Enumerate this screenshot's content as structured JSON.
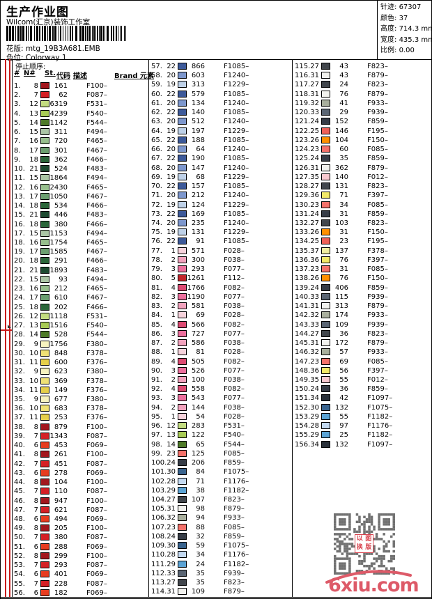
{
  "header": {
    "title": "生产作业图",
    "studio": "Wilcom(汇京)装饰工作室",
    "pattern_label": "花版:",
    "pattern_value": "mtg_19B3A681.EMB",
    "colorway_label": "色位:",
    "colorway_value": "Colorway 1",
    "info": [
      {
        "label": "针迹:",
        "value": "67307"
      },
      {
        "label": "颜色:",
        "value": "37"
      },
      {
        "label": "高度:",
        "value": "714.3 mm"
      },
      {
        "label": "宽度:",
        "value": "435.3 mm"
      },
      {
        "label": "比例:",
        "value": "0.00"
      }
    ]
  },
  "table": {
    "stop_order_label": "停止顺序:",
    "headers": [
      "#",
      "N#",
      "St.",
      "代码",
      "描述",
      "Brand 元素"
    ],
    "needle_colors": {
      "1": "#f6d2db",
      "2": "#f2a2bd",
      "3": "#ec6f9d",
      "4": "#dc4a72",
      "5": "#c2252b",
      "6": "#e73c1f",
      "7": "#d52025",
      "8": "#a3171d",
      "9": "#f6f2bf",
      "10": "#efe175",
      "11": "#e6cf4a",
      "12": "#c3dc80",
      "13": "#a8cb55",
      "14": "#4e7a28",
      "15": "#abc5a5",
      "16": "#97bf8d",
      "17": "#6c9f70",
      "18": "#2b663a",
      "19": "#bed1e8",
      "20": "#7d97cd",
      "21": "#1e4a31",
      "22": "#3d5a9a",
      "23": "#f4716a",
      "24": "#363c46",
      "25": "#ee6057",
      "26": "#ff9000",
      "27": "#41464c",
      "28": "#c3d9f1",
      "29": "#5ba3d4",
      "30": "#39648f",
      "31": "#f2f2ee",
      "32": "#a9af9d",
      "33": "#5a6573",
      "34": "#293039",
      "35": "#f9c9d0",
      "36": "#f2e968",
      "37": "#f0eda0"
    },
    "rows": [
      [
        "1.",
        8,
        "161",
        "F100–"
      ],
      [
        "2.",
        7,
        "62",
        "F087–"
      ],
      [
        "3.",
        12,
        "6319",
        "F531–"
      ],
      [
        "4.",
        13,
        "4239",
        "F540–"
      ],
      [
        "5.",
        14,
        "1142",
        "F544–"
      ],
      [
        "6.",
        15,
        "311",
        "F494–"
      ],
      [
        "7.",
        16,
        "720",
        "F465–"
      ],
      [
        "8.",
        17,
        "301",
        "F467–"
      ],
      [
        "9.",
        18,
        "362",
        "F466–"
      ],
      [
        "10.",
        21,
        "524",
        "F483–"
      ],
      [
        "11.",
        15,
        "1864",
        "F494–"
      ],
      [
        "12.",
        16,
        "2430",
        "F465–"
      ],
      [
        "13.",
        17,
        "1050",
        "F467–"
      ],
      [
        "14.",
        18,
        "534",
        "F466–"
      ],
      [
        "15.",
        21,
        "446",
        "F483–"
      ],
      [
        "16.",
        18,
        "380",
        "F466–"
      ],
      [
        "17.",
        15,
        "1153",
        "F494–"
      ],
      [
        "18.",
        16,
        "1754",
        "F465–"
      ],
      [
        "19.",
        17,
        "1585",
        "F467–"
      ],
      [
        "20.",
        18,
        "291",
        "F466–"
      ],
      [
        "21.",
        21,
        "1893",
        "F483–"
      ],
      [
        "22.",
        15,
        "93",
        "F494–"
      ],
      [
        "23.",
        16,
        "212",
        "F465–"
      ],
      [
        "24.",
        17,
        "610",
        "F467–"
      ],
      [
        "25.",
        18,
        "202",
        "F466–"
      ],
      [
        "26.",
        12,
        "1118",
        "F531–"
      ],
      [
        "27.",
        13,
        "1516",
        "F540–"
      ],
      [
        "28.",
        14,
        "528",
        "F544–"
      ],
      [
        "29.",
        9,
        "1756",
        "F380–"
      ],
      [
        "30.",
        10,
        "848",
        "F378–"
      ],
      [
        "31.",
        11,
        "600",
        "F376–"
      ],
      [
        "32.",
        9,
        "623",
        "F380–"
      ],
      [
        "33.",
        10,
        "369",
        "F378–"
      ],
      [
        "34.",
        11,
        "149",
        "F376–"
      ],
      [
        "35.",
        9,
        "677",
        "F380–"
      ],
      [
        "36.",
        10,
        "683",
        "F378–"
      ],
      [
        "37.",
        11,
        "253",
        "F376–"
      ],
      [
        "38.",
        8,
        "879",
        "F100–"
      ],
      [
        "39.",
        7,
        "1343",
        "F087–"
      ],
      [
        "40.",
        6,
        "453",
        "F069–"
      ],
      [
        "41.",
        8,
        "261",
        "F100–"
      ],
      [
        "42.",
        7,
        "451",
        "F087–"
      ],
      [
        "43.",
        6,
        "278",
        "F069–"
      ],
      [
        "44.",
        8,
        "104",
        "F100–"
      ],
      [
        "45.",
        7,
        "110",
        "F087–"
      ],
      [
        "46.",
        8,
        "947",
        "F100–"
      ],
      [
        "47.",
        7,
        "621",
        "F087–"
      ],
      [
        "48.",
        6,
        "494",
        "F069–"
      ],
      [
        "49.",
        8,
        "205",
        "F100–"
      ],
      [
        "50.",
        7,
        "380",
        "F087–"
      ],
      [
        "51.",
        6,
        "288",
        "F069–"
      ],
      [
        "52.",
        8,
        "299",
        "F100–"
      ],
      [
        "53.",
        7,
        "293",
        "F087–"
      ],
      [
        "54.",
        6,
        "401",
        "F069–"
      ],
      [
        "55.",
        7,
        "228",
        "F087–"
      ],
      [
        "56.",
        6,
        "182",
        "F069–"
      ],
      [
        "57.",
        22,
        "866",
        "F1085–"
      ],
      [
        "58.",
        20,
        "603",
        "F1240–"
      ],
      [
        "59.",
        19,
        "313",
        "F1229–"
      ],
      [
        "60.",
        22,
        "579",
        "F1085–"
      ],
      [
        "61.",
        20,
        "134",
        "F1240–"
      ],
      [
        "62.",
        22,
        "140",
        "F1085–"
      ],
      [
        "63.",
        20,
        "512",
        "F1240–"
      ],
      [
        "64.",
        19,
        "197",
        "F1229–"
      ],
      [
        "65.",
        22,
        "188",
        "F1085–"
      ],
      [
        "66.",
        20,
        "64",
        "F1240–"
      ],
      [
        "67.",
        22,
        "190",
        "F1085–"
      ],
      [
        "68.",
        20,
        "147",
        "F1240–"
      ],
      [
        "69.",
        19,
        "68",
        "F1229–"
      ],
      [
        "70.",
        22,
        "157",
        "F1085–"
      ],
      [
        "71.",
        20,
        "212",
        "F1240–"
      ],
      [
        "72.",
        19,
        "124",
        "F1229–"
      ],
      [
        "73.",
        22,
        "169",
        "F1085–"
      ],
      [
        "74.",
        20,
        "235",
        "F1240–"
      ],
      [
        "75.",
        19,
        "131",
        "F1229–"
      ],
      [
        "76.",
        22,
        "91",
        "F1085–"
      ],
      [
        "77.",
        1,
        "571",
        "F028–"
      ],
      [
        "78.",
        2,
        "300",
        "F038–"
      ],
      [
        "79.",
        3,
        "293",
        "F077–"
      ],
      [
        "80.",
        5,
        "1261",
        "F112–"
      ],
      [
        "81.",
        4,
        "1766",
        "F082–"
      ],
      [
        "82.",
        3,
        "1190",
        "F077–"
      ],
      [
        "83.",
        2,
        "581",
        "F038–"
      ],
      [
        "84.",
        1,
        "69",
        "F028–"
      ],
      [
        "85.",
        4,
        "566",
        "F082–"
      ],
      [
        "86.",
        3,
        "727",
        "F077–"
      ],
      [
        "87.",
        2,
        "586",
        "F038–"
      ],
      [
        "88.",
        1,
        "81",
        "F028–"
      ],
      [
        "89.",
        4,
        "505",
        "F082–"
      ],
      [
        "90.",
        3,
        "526",
        "F077–"
      ],
      [
        "91.",
        2,
        "100",
        "F038–"
      ],
      [
        "92.",
        4,
        "558",
        "F082–"
      ],
      [
        "93.",
        3,
        "543",
        "F077–"
      ],
      [
        "94.",
        2,
        "144",
        "F038–"
      ],
      [
        "95.",
        1,
        "54",
        "F028–"
      ],
      [
        "96.",
        12,
        "283",
        "F531–"
      ],
      [
        "97.",
        13,
        "122",
        "F540–"
      ],
      [
        "98.",
        14,
        "65",
        "F544–"
      ],
      [
        "99.",
        23,
        "125",
        "F085–"
      ],
      [
        "100.",
        24,
        "206",
        "F859–"
      ],
      [
        "101.",
        30,
        "84",
        "F1075–"
      ],
      [
        "102.",
        28,
        "71",
        "F1176–"
      ],
      [
        "103.",
        29,
        "38",
        "F1182–"
      ],
      [
        "104.",
        27,
        "107",
        "F823–"
      ],
      [
        "105.",
        31,
        "98",
        "F879–"
      ],
      [
        "106.",
        32,
        "94",
        "F933–"
      ],
      [
        "107.",
        23,
        "88",
        "F085–"
      ],
      [
        "108.",
        24,
        "32",
        "F859–"
      ],
      [
        "109.",
        30,
        "59",
        "F1075–"
      ],
      [
        "110.",
        28,
        "34",
        "F1176–"
      ],
      [
        "111.",
        29,
        "24",
        "F1182–"
      ],
      [
        "112.",
        33,
        "35",
        "F939–"
      ],
      [
        "113.",
        27,
        "35",
        "F823–"
      ],
      [
        "114.",
        31,
        "109",
        "F879–"
      ],
      [
        "115.",
        27,
        "43",
        "F823–"
      ],
      [
        "116.",
        31,
        "43",
        "F879–"
      ],
      [
        "117.",
        27,
        "24",
        "F823–"
      ],
      [
        "118.",
        31,
        "76",
        "F879–"
      ],
      [
        "119.",
        32,
        "41",
        "F933–"
      ],
      [
        "120.",
        33,
        "29",
        "F939–"
      ],
      [
        "121.",
        24,
        "152",
        "F859–"
      ],
      [
        "122.",
        25,
        "146",
        "F195–"
      ],
      [
        "123.",
        26,
        "104",
        "F150–"
      ],
      [
        "124.",
        23,
        "60",
        "F085–"
      ],
      [
        "125.",
        24,
        "35",
        "F859–"
      ],
      [
        "126.",
        31,
        "362",
        "F879–"
      ],
      [
        "127.",
        35,
        "140",
        "F012–"
      ],
      [
        "128.",
        27,
        "131",
        "F823–"
      ],
      [
        "129.",
        36,
        "71",
        "F397–"
      ],
      [
        "130.",
        23,
        "34",
        "F085–"
      ],
      [
        "131.",
        24,
        "31",
        "F859–"
      ],
      [
        "132.",
        27,
        "103",
        "F823–"
      ],
      [
        "133.",
        26,
        "31",
        "F150–"
      ],
      [
        "134.",
        25,
        "23",
        "F195–"
      ],
      [
        "135.",
        37,
        "137",
        "F378–"
      ],
      [
        "136.",
        36,
        "76",
        "F397–"
      ],
      [
        "137.",
        23,
        "31",
        "F085–"
      ],
      [
        "138.",
        26,
        "76",
        "F150–"
      ],
      [
        "139.",
        24,
        "406",
        "F859–"
      ],
      [
        "140.",
        33,
        "115",
        "F939–"
      ],
      [
        "141.",
        31,
        "313",
        "F879–"
      ],
      [
        "142.",
        32,
        "174",
        "F933–"
      ],
      [
        "143.",
        33,
        "109",
        "F939–"
      ],
      [
        "144.",
        27,
        "36",
        "F823–"
      ],
      [
        "145.",
        31,
        "172",
        "F879–"
      ],
      [
        "146.",
        32,
        "57",
        "F933–"
      ],
      [
        "147.",
        23,
        "69",
        "F085–"
      ],
      [
        "148.",
        36,
        "56",
        "F397–"
      ],
      [
        "149.",
        35,
        "55",
        "F012–"
      ],
      [
        "150.",
        24,
        "36",
        "F859–"
      ],
      [
        "151.",
        34,
        "42",
        "F1097–"
      ],
      [
        "152.",
        30,
        "132",
        "F1075–"
      ],
      [
        "153.",
        29,
        "55",
        "F1182–"
      ],
      [
        "154.",
        28,
        "97",
        "F1176–"
      ],
      [
        "155.",
        29,
        "25",
        "F1182–"
      ],
      [
        "156.",
        34,
        "132",
        "F1097–"
      ]
    ]
  },
  "footer": {
    "logo": "6xiu.com",
    "stamp": "以图换版",
    "logo_color": "#dd5a68",
    "qr_color": "#717171"
  }
}
